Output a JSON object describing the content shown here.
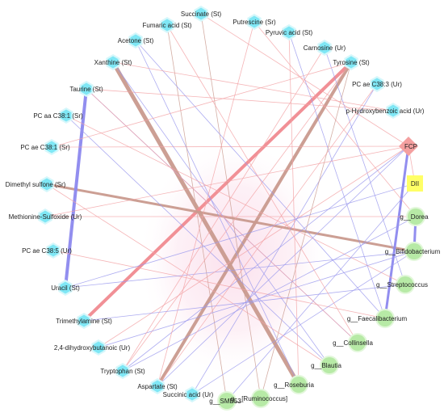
{
  "title": "",
  "colors": {
    "metabolite_node": "#7fe7f5",
    "metabolite_node_halo": "#d6f7fb",
    "taxon_node": "#b7eaa6",
    "taxon_node_halo": "#e2f7da",
    "fcp_node": "#f49f9f",
    "dii_node": "#ffff66",
    "positive_edge": "#f2a2a5",
    "negative_edge": "#9a98ee",
    "mixed_edge": "#c99a8e",
    "strong_positive_edge": "#f08a90",
    "strong_negative_edge": "#8c88ee"
  },
  "nodes": [
    {
      "id": "succinate",
      "label": "Succinate (St)",
      "type": "metabolite"
    },
    {
      "id": "putrescine",
      "label": "Putrescine (Sr)",
      "type": "metabolite"
    },
    {
      "id": "fumaric",
      "label": "Fumaric acid (St)",
      "type": "metabolite"
    },
    {
      "id": "pyruvic",
      "label": "Pyruvic acid (St)",
      "type": "metabolite"
    },
    {
      "id": "acetone",
      "label": "Acetone (St)",
      "type": "metabolite"
    },
    {
      "id": "carnosine",
      "label": "Carnosine (Ur)",
      "type": "metabolite"
    },
    {
      "id": "xanthine",
      "label": "Xanthine (St)",
      "type": "metabolite"
    },
    {
      "id": "tyrosine",
      "label": "Tyrosine (St)",
      "type": "metabolite"
    },
    {
      "id": "taurine",
      "label": "Taurine (St)",
      "type": "metabolite"
    },
    {
      "id": "pcae383",
      "label": "PC ae C38:3 (Ur)",
      "type": "metabolite"
    },
    {
      "id": "pcaa381",
      "label": "PC aa C38:1 (Sr)",
      "type": "metabolite"
    },
    {
      "id": "phba",
      "label": "p-Hydroxybenzoic acid (Ur)",
      "type": "metabolite"
    },
    {
      "id": "pcae381",
      "label": "PC ae C38:1 (Sr)",
      "type": "metabolite"
    },
    {
      "id": "fcp",
      "label": "FCP",
      "type": "fcp"
    },
    {
      "id": "dms",
      "label": "Dimethyl sulfone (Sr)",
      "type": "metabolite"
    },
    {
      "id": "dii",
      "label": "DII",
      "type": "dii"
    },
    {
      "id": "metsulf",
      "label": "Methionine-Sulfoxide (Ur)",
      "type": "metabolite"
    },
    {
      "id": "dorea",
      "label": "g__Dorea",
      "type": "taxon"
    },
    {
      "id": "pcae385",
      "label": "PC ae C38:5 (Ur)",
      "type": "metabolite"
    },
    {
      "id": "bifido",
      "label": "g__Bifidobacterium",
      "type": "taxon"
    },
    {
      "id": "strepto",
      "label": "g__Streptococcus",
      "type": "taxon"
    },
    {
      "id": "uracil",
      "label": "Uracil (St)",
      "type": "metabolite"
    },
    {
      "id": "trimethylamine",
      "label": "Trimethylamine (St)",
      "type": "metabolite"
    },
    {
      "id": "faecali",
      "label": "g__Faecalibacterium",
      "type": "taxon"
    },
    {
      "id": "dhb",
      "label": "2,4-dihydroxybutanoic (Ur)",
      "type": "metabolite"
    },
    {
      "id": "collinsella",
      "label": "g__Collinsella",
      "type": "taxon"
    },
    {
      "id": "tryptophan",
      "label": "Tryptophan (St)",
      "type": "metabolite"
    },
    {
      "id": "blautia",
      "label": "g__Blautia",
      "type": "taxon"
    },
    {
      "id": "aspartate",
      "label": "Aspartate (St)",
      "type": "metabolite"
    },
    {
      "id": "succinic",
      "label": "Succinic acid (Ur)",
      "type": "metabolite"
    },
    {
      "id": "roseburia",
      "label": "g__Roseburia",
      "type": "taxon"
    },
    {
      "id": "smb53",
      "label": "g__SMB53",
      "type": "taxon"
    },
    {
      "id": "rumino",
      "label": "g__[Ruminococcus]",
      "type": "taxon"
    }
  ],
  "edges": [
    {
      "source": "xanthine",
      "target": "roseburia",
      "sign": "mixed",
      "weight": 5
    },
    {
      "source": "tyrosine",
      "target": "trimethylamine",
      "sign": "positive",
      "weight": 4
    },
    {
      "source": "tyrosine",
      "target": "aspartate",
      "sign": "mixed",
      "weight": 4
    },
    {
      "source": "dms",
      "target": "bifido",
      "sign": "mixed",
      "weight": 3
    },
    {
      "source": "taurine",
      "target": "uracil",
      "sign": "negative",
      "weight": 4
    },
    {
      "source": "fcp",
      "target": "faecali",
      "sign": "negative",
      "weight": 3
    },
    {
      "source": "dorea",
      "target": "bifido",
      "sign": "negative",
      "weight": 3
    },
    {
      "source": "pcae381",
      "target": "fcp",
      "sign": "positive",
      "weight": 1
    },
    {
      "source": "fcp",
      "target": "dii",
      "sign": "positive",
      "weight": 1
    },
    {
      "source": "acetone",
      "target": "roseburia",
      "sign": "negative",
      "weight": 1
    },
    {
      "source": "taurine",
      "target": "phba",
      "sign": "positive",
      "weight": 1
    },
    {
      "source": "taurine",
      "target": "collinsella",
      "sign": "negative",
      "weight": 1
    },
    {
      "source": "xanthine",
      "target": "blautia",
      "sign": "negative",
      "weight": 1
    },
    {
      "source": "fumaric",
      "target": "smb53",
      "sign": "mixed",
      "weight": 1
    },
    {
      "source": "succinate",
      "target": "rumino",
      "sign": "mixed",
      "weight": 1
    },
    {
      "source": "putrescine",
      "target": "dorea",
      "sign": "positive",
      "weight": 1
    },
    {
      "source": "pyruvic",
      "target": "faecali",
      "sign": "negative",
      "weight": 1
    },
    {
      "source": "carnosine",
      "target": "strepto",
      "sign": "negative",
      "weight": 1
    },
    {
      "source": "pcaa381",
      "target": "strepto",
      "sign": "positive",
      "weight": 1
    },
    {
      "source": "pcaa381",
      "target": "blautia",
      "sign": "negative",
      "weight": 1
    },
    {
      "source": "metsulf",
      "target": "dorea",
      "sign": "positive",
      "weight": 1
    },
    {
      "source": "pcae385",
      "target": "faecali",
      "sign": "positive",
      "weight": 1
    },
    {
      "source": "uracil",
      "target": "bifido",
      "sign": "negative",
      "weight": 1
    },
    {
      "source": "dhb",
      "target": "fcp",
      "sign": "positive",
      "weight": 1
    },
    {
      "source": "tryptophan",
      "target": "fcp",
      "sign": "negative",
      "weight": 1
    },
    {
      "source": "tryptophan",
      "target": "tyrosine",
      "sign": "positive",
      "weight": 1
    },
    {
      "source": "aspartate",
      "target": "fcp",
      "sign": "negative",
      "weight": 1
    },
    {
      "source": "aspartate",
      "target": "putrescine",
      "sign": "positive",
      "weight": 1
    },
    {
      "source": "succinic",
      "target": "bifido",
      "sign": "negative",
      "weight": 1
    },
    {
      "source": "succinic",
      "target": "pcae383",
      "sign": "negative",
      "weight": 1
    },
    {
      "source": "smb53",
      "target": "dii",
      "sign": "negative",
      "weight": 1
    },
    {
      "source": "rumino",
      "target": "tyrosine",
      "sign": "mixed",
      "weight": 1
    },
    {
      "source": "roseburia",
      "target": "pyruvic",
      "sign": "positive",
      "weight": 1
    },
    {
      "source": "blautia",
      "target": "dms",
      "sign": "positive",
      "weight": 1
    },
    {
      "source": "collinsella",
      "target": "taurine",
      "sign": "positive",
      "weight": 1
    },
    {
      "source": "faecali",
      "target": "acetone",
      "sign": "negative",
      "weight": 1
    },
    {
      "source": "strepto",
      "target": "trimethylamine",
      "sign": "negative",
      "weight": 1
    },
    {
      "source": "bifido",
      "target": "dhb",
      "sign": "negative",
      "weight": 1
    },
    {
      "source": "dorea",
      "target": "tryptophan",
      "sign": "negative",
      "weight": 1
    },
    {
      "source": "fcp",
      "target": "succinate",
      "sign": "positive",
      "weight": 1
    },
    {
      "source": "fcp",
      "target": "metsulf",
      "sign": "positive",
      "weight": 1
    },
    {
      "source": "dii",
      "target": "uracil",
      "sign": "negative",
      "weight": 1
    },
    {
      "source": "tyrosine",
      "target": "pcae381",
      "sign": "positive",
      "weight": 1
    },
    {
      "source": "xanthine",
      "target": "phba",
      "sign": "positive",
      "weight": 1
    },
    {
      "source": "fumaric",
      "target": "collinsella",
      "sign": "positive",
      "weight": 1
    },
    {
      "source": "pcae383",
      "target": "aspartate",
      "sign": "positive",
      "weight": 1
    },
    {
      "source": "carnosine",
      "target": "tryptophan",
      "sign": "positive",
      "weight": 1
    }
  ]
}
